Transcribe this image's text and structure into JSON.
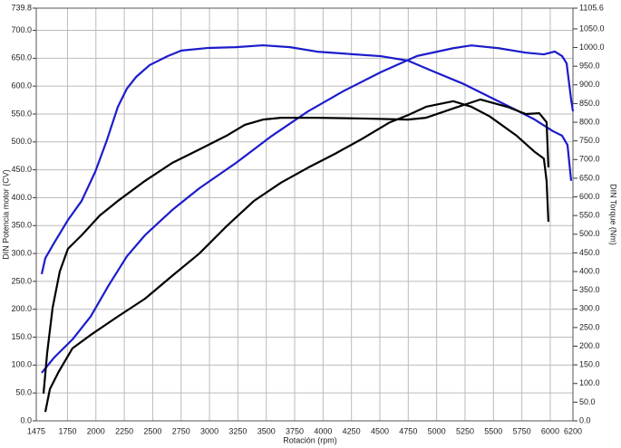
{
  "chart_data": {
    "type": "line",
    "x_label": "Rotación (rpm)",
    "y_label": "DIN Potencia motor (CV)",
    "y2_label": "DIN Torque (Nm)",
    "grid": true,
    "xlim": [
      1475,
      6200
    ],
    "xticks": [
      1475,
      1750,
      2000,
      2250,
      2500,
      2750,
      3000,
      3250,
      3500,
      3750,
      4000,
      4250,
      4500,
      4750,
      5000,
      5250,
      5500,
      5750,
      6000,
      6200
    ],
    "ylim": [
      0,
      739.8
    ],
    "yticks": [
      {
        "value": 0,
        "label": "0.0"
      },
      {
        "value": 50,
        "label": "50.0"
      },
      {
        "value": 100,
        "label": "100.0"
      },
      {
        "value": 150,
        "label": "150.0"
      },
      {
        "value": 200,
        "label": "200.0"
      },
      {
        "value": 250,
        "label": "250.0"
      },
      {
        "value": 300,
        "label": "300.0"
      },
      {
        "value": 350,
        "label": "350.0"
      },
      {
        "value": 400,
        "label": "400.0"
      },
      {
        "value": 450,
        "label": "450.0"
      },
      {
        "value": 500,
        "label": "500.0"
      },
      {
        "value": 550,
        "label": "550.0"
      },
      {
        "value": 600,
        "label": "600.0"
      },
      {
        "value": 650,
        "label": "650.0"
      },
      {
        "value": 700,
        "label": "700.0"
      },
      739.8
    ],
    "y2lim": [
      0,
      1105.6
    ],
    "y2ticks": [
      {
        "value": 0,
        "label": "0.0"
      },
      {
        "value": 50,
        "label": "50.0"
      },
      {
        "value": 100,
        "label": "100.0"
      },
      {
        "value": 150,
        "label": "150.0"
      },
      {
        "value": 200,
        "label": "200.0"
      },
      {
        "value": 250,
        "label": "250.0"
      },
      {
        "value": 300,
        "label": "300.0"
      },
      {
        "value": 350,
        "label": "350.0"
      },
      {
        "value": 400,
        "label": "400.0"
      },
      {
        "value": 450,
        "label": "450.0"
      },
      {
        "value": 500,
        "label": "500.0"
      },
      {
        "value": 550,
        "label": "550.0"
      },
      {
        "value": 600,
        "label": "600.0"
      },
      {
        "value": 650,
        "label": "650.0"
      },
      {
        "value": 700,
        "label": "700.0"
      },
      {
        "value": 750,
        "label": "750.0"
      },
      {
        "value": 800,
        "label": "800.0"
      },
      {
        "value": 850,
        "label": "850.0"
      },
      {
        "value": 900,
        "label": "900.0"
      },
      {
        "value": 950,
        "label": "950.0"
      },
      {
        "value": 1000,
        "label": "1000.0"
      },
      {
        "value": 1050,
        "label": "1050.0"
      },
      1105.6
    ],
    "series": [
      {
        "color": "#1c1ccc",
        "axis": "y2",
        "x": [
          1523,
          1555,
          1635,
          1754,
          1874,
          1994,
          2097,
          2193,
          2273,
          2353,
          2473,
          2632,
          2752,
          2991,
          3231,
          3470,
          3710,
          3949,
          4268,
          4508,
          4747,
          4987,
          5226,
          5465,
          5705,
          5864,
          6024,
          6104,
          6152,
          6184
        ],
        "values": [
          393,
          436,
          478,
          538,
          589,
          667,
          752,
          841,
          890,
          921,
          953,
          977,
          992,
          999,
          1001,
          1006,
          1001,
          989,
          982,
          977,
          965,
          934,
          904,
          868,
          832,
          807,
          776,
          764,
          739,
          643
        ]
      },
      {
        "color": "#1c1ccc",
        "x": [
          1523,
          1635,
          1794,
          1954,
          2113,
          2273,
          2433,
          2672,
          2911,
          3231,
          3550,
          3869,
          4188,
          4508,
          4827,
          5146,
          5306,
          5545,
          5785,
          5944,
          6040,
          6104,
          6144,
          6184,
          6200
        ],
        "values": [
          86,
          114,
          146,
          187,
          243,
          295,
          333,
          378,
          417,
          462,
          511,
          555,
          592,
          625,
          654,
          668,
          673,
          668,
          660,
          657,
          662,
          654,
          641,
          576,
          555
        ]
      },
      {
        "color": "#000000",
        "axis": "y2",
        "x": [
          1539,
          1571,
          1619,
          1682,
          1754,
          1874,
          2034,
          2193,
          2433,
          2672,
          2911,
          3151,
          3311,
          3470,
          3630,
          3949,
          4348,
          4747,
          4907,
          5146,
          5386,
          5625,
          5785,
          5904,
          5968,
          5984
        ],
        "values": [
          73,
          182,
          303,
          400,
          461,
          497,
          550,
          589,
          643,
          691,
          727,
          764,
          793,
          807,
          812,
          812,
          810,
          807,
          812,
          837,
          861,
          841,
          822,
          824,
          800,
          679
        ]
      },
      {
        "color": "#000000",
        "x": [
          1555,
          1595,
          1675,
          1794,
          1954,
          2193,
          2433,
          2672,
          2911,
          3151,
          3390,
          3630,
          3869,
          4108,
          4348,
          4587,
          4747,
          4907,
          5146,
          5306,
          5465,
          5705,
          5864,
          5944,
          5968,
          5984
        ],
        "values": [
          16,
          57,
          89,
          130,
          154,
          187,
          219,
          260,
          300,
          349,
          394,
          427,
          454,
          479,
          506,
          535,
          548,
          563,
          573,
          563,
          546,
          511,
          482,
          470,
          430,
          357
        ]
      }
    ]
  }
}
